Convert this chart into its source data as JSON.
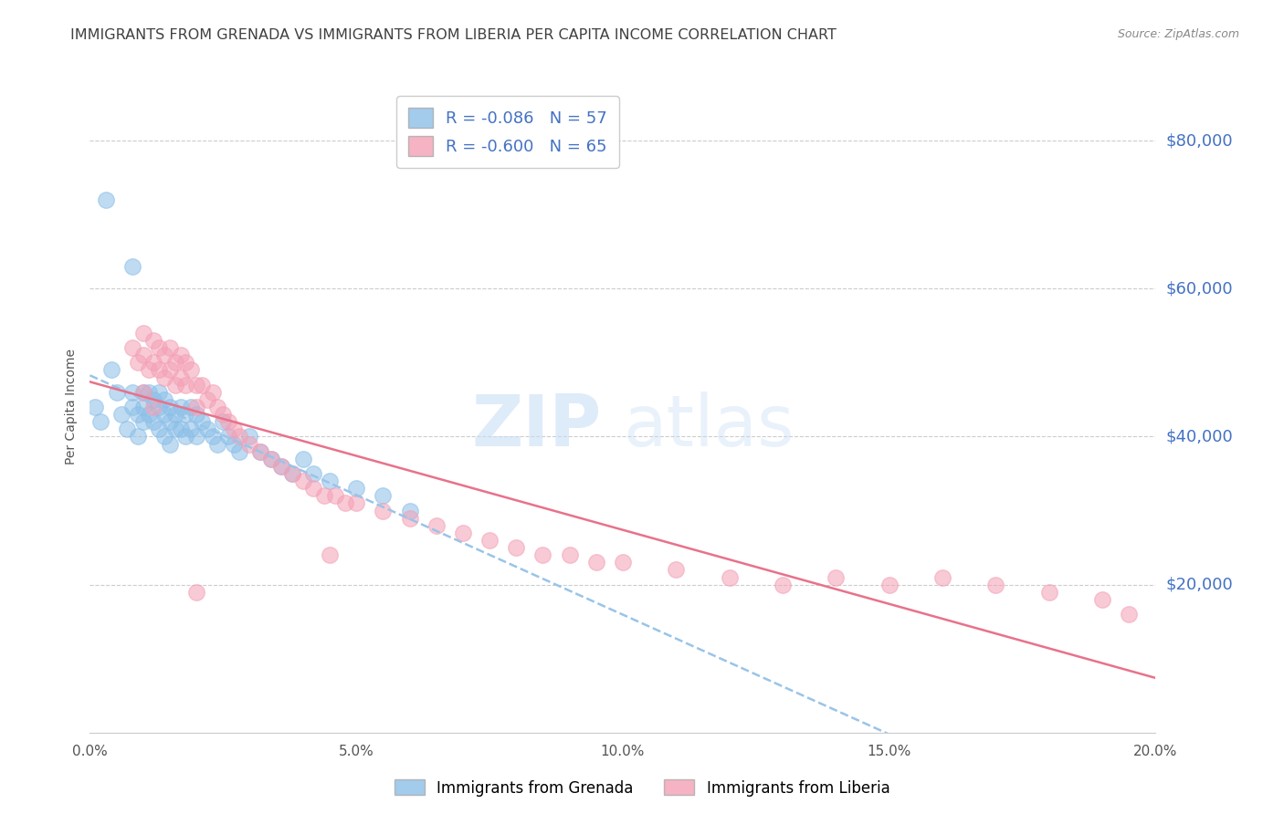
{
  "title": "IMMIGRANTS FROM GRENADA VS IMMIGRANTS FROM LIBERIA PER CAPITA INCOME CORRELATION CHART",
  "source": "Source: ZipAtlas.com",
  "ylabel": "Per Capita Income",
  "xlim": [
    0.0,
    0.2
  ],
  "ylim": [
    0,
    88000
  ],
  "yticks": [
    20000,
    40000,
    60000,
    80000
  ],
  "ytick_labels": [
    "$20,000",
    "$40,000",
    "$60,000",
    "$80,000"
  ],
  "xticks": [
    0.0,
    0.05,
    0.1,
    0.15,
    0.2
  ],
  "xtick_labels": [
    "0.0%",
    "5.0%",
    "10.0%",
    "15.0%",
    "20.0%"
  ],
  "grenada_color": "#8bbfe8",
  "liberia_color": "#f4a0b5",
  "grenada_R": -0.086,
  "grenada_N": 57,
  "liberia_R": -0.6,
  "liberia_N": 65,
  "legend_label_grenada": "Immigrants from Grenada",
  "legend_label_liberia": "Immigrants from Liberia",
  "watermark_zip": "ZIP",
  "watermark_atlas": "atlas",
  "background_color": "#ffffff",
  "grid_color": "#cccccc",
  "title_color": "#404040",
  "title_fontsize": 11.5,
  "label_fontsize": 10,
  "tick_fontsize": 11,
  "ytick_color": "#4472c4",
  "source_color": "#888888",
  "grenada_line_color": "#99c4e8",
  "liberia_line_color": "#e8728a",
  "grenada_x": [
    0.001,
    0.002,
    0.004,
    0.005,
    0.006,
    0.007,
    0.008,
    0.008,
    0.009,
    0.009,
    0.01,
    0.01,
    0.01,
    0.011,
    0.011,
    0.012,
    0.012,
    0.013,
    0.013,
    0.013,
    0.014,
    0.014,
    0.014,
    0.015,
    0.015,
    0.015,
    0.016,
    0.016,
    0.017,
    0.017,
    0.018,
    0.018,
    0.019,
    0.019,
    0.02,
    0.02,
    0.021,
    0.022,
    0.023,
    0.024,
    0.025,
    0.026,
    0.027,
    0.028,
    0.03,
    0.032,
    0.034,
    0.036,
    0.038,
    0.04,
    0.042,
    0.045,
    0.05,
    0.055,
    0.06,
    0.008,
    0.003
  ],
  "grenada_y": [
    44000,
    42000,
    49000,
    46000,
    43000,
    41000,
    46000,
    44000,
    43000,
    40000,
    46000,
    44000,
    42000,
    46000,
    43000,
    45000,
    42000,
    46000,
    44000,
    41000,
    45000,
    43000,
    40000,
    44000,
    42000,
    39000,
    43000,
    41000,
    44000,
    41000,
    43000,
    40000,
    44000,
    41000,
    43000,
    40000,
    42000,
    41000,
    40000,
    39000,
    42000,
    40000,
    39000,
    38000,
    40000,
    38000,
    37000,
    36000,
    35000,
    37000,
    35000,
    34000,
    33000,
    32000,
    30000,
    63000,
    72000
  ],
  "liberia_x": [
    0.008,
    0.009,
    0.01,
    0.01,
    0.011,
    0.012,
    0.012,
    0.013,
    0.013,
    0.014,
    0.014,
    0.015,
    0.015,
    0.016,
    0.016,
    0.017,
    0.017,
    0.018,
    0.018,
    0.019,
    0.02,
    0.02,
    0.021,
    0.022,
    0.023,
    0.024,
    0.025,
    0.026,
    0.027,
    0.028,
    0.03,
    0.032,
    0.034,
    0.036,
    0.038,
    0.04,
    0.042,
    0.044,
    0.046,
    0.048,
    0.05,
    0.055,
    0.06,
    0.065,
    0.07,
    0.075,
    0.08,
    0.085,
    0.09,
    0.095,
    0.1,
    0.11,
    0.12,
    0.13,
    0.14,
    0.15,
    0.16,
    0.17,
    0.18,
    0.19,
    0.195,
    0.045,
    0.01,
    0.012,
    0.02
  ],
  "liberia_y": [
    52000,
    50000,
    54000,
    51000,
    49000,
    53000,
    50000,
    52000,
    49000,
    51000,
    48000,
    52000,
    49000,
    50000,
    47000,
    51000,
    48000,
    50000,
    47000,
    49000,
    47000,
    44000,
    47000,
    45000,
    46000,
    44000,
    43000,
    42000,
    41000,
    40000,
    39000,
    38000,
    37000,
    36000,
    35000,
    34000,
    33000,
    32000,
    32000,
    31000,
    31000,
    30000,
    29000,
    28000,
    27000,
    26000,
    25000,
    24000,
    24000,
    23000,
    23000,
    22000,
    21000,
    20000,
    21000,
    20000,
    21000,
    20000,
    19000,
    18000,
    16000,
    24000,
    46000,
    44000,
    19000
  ]
}
